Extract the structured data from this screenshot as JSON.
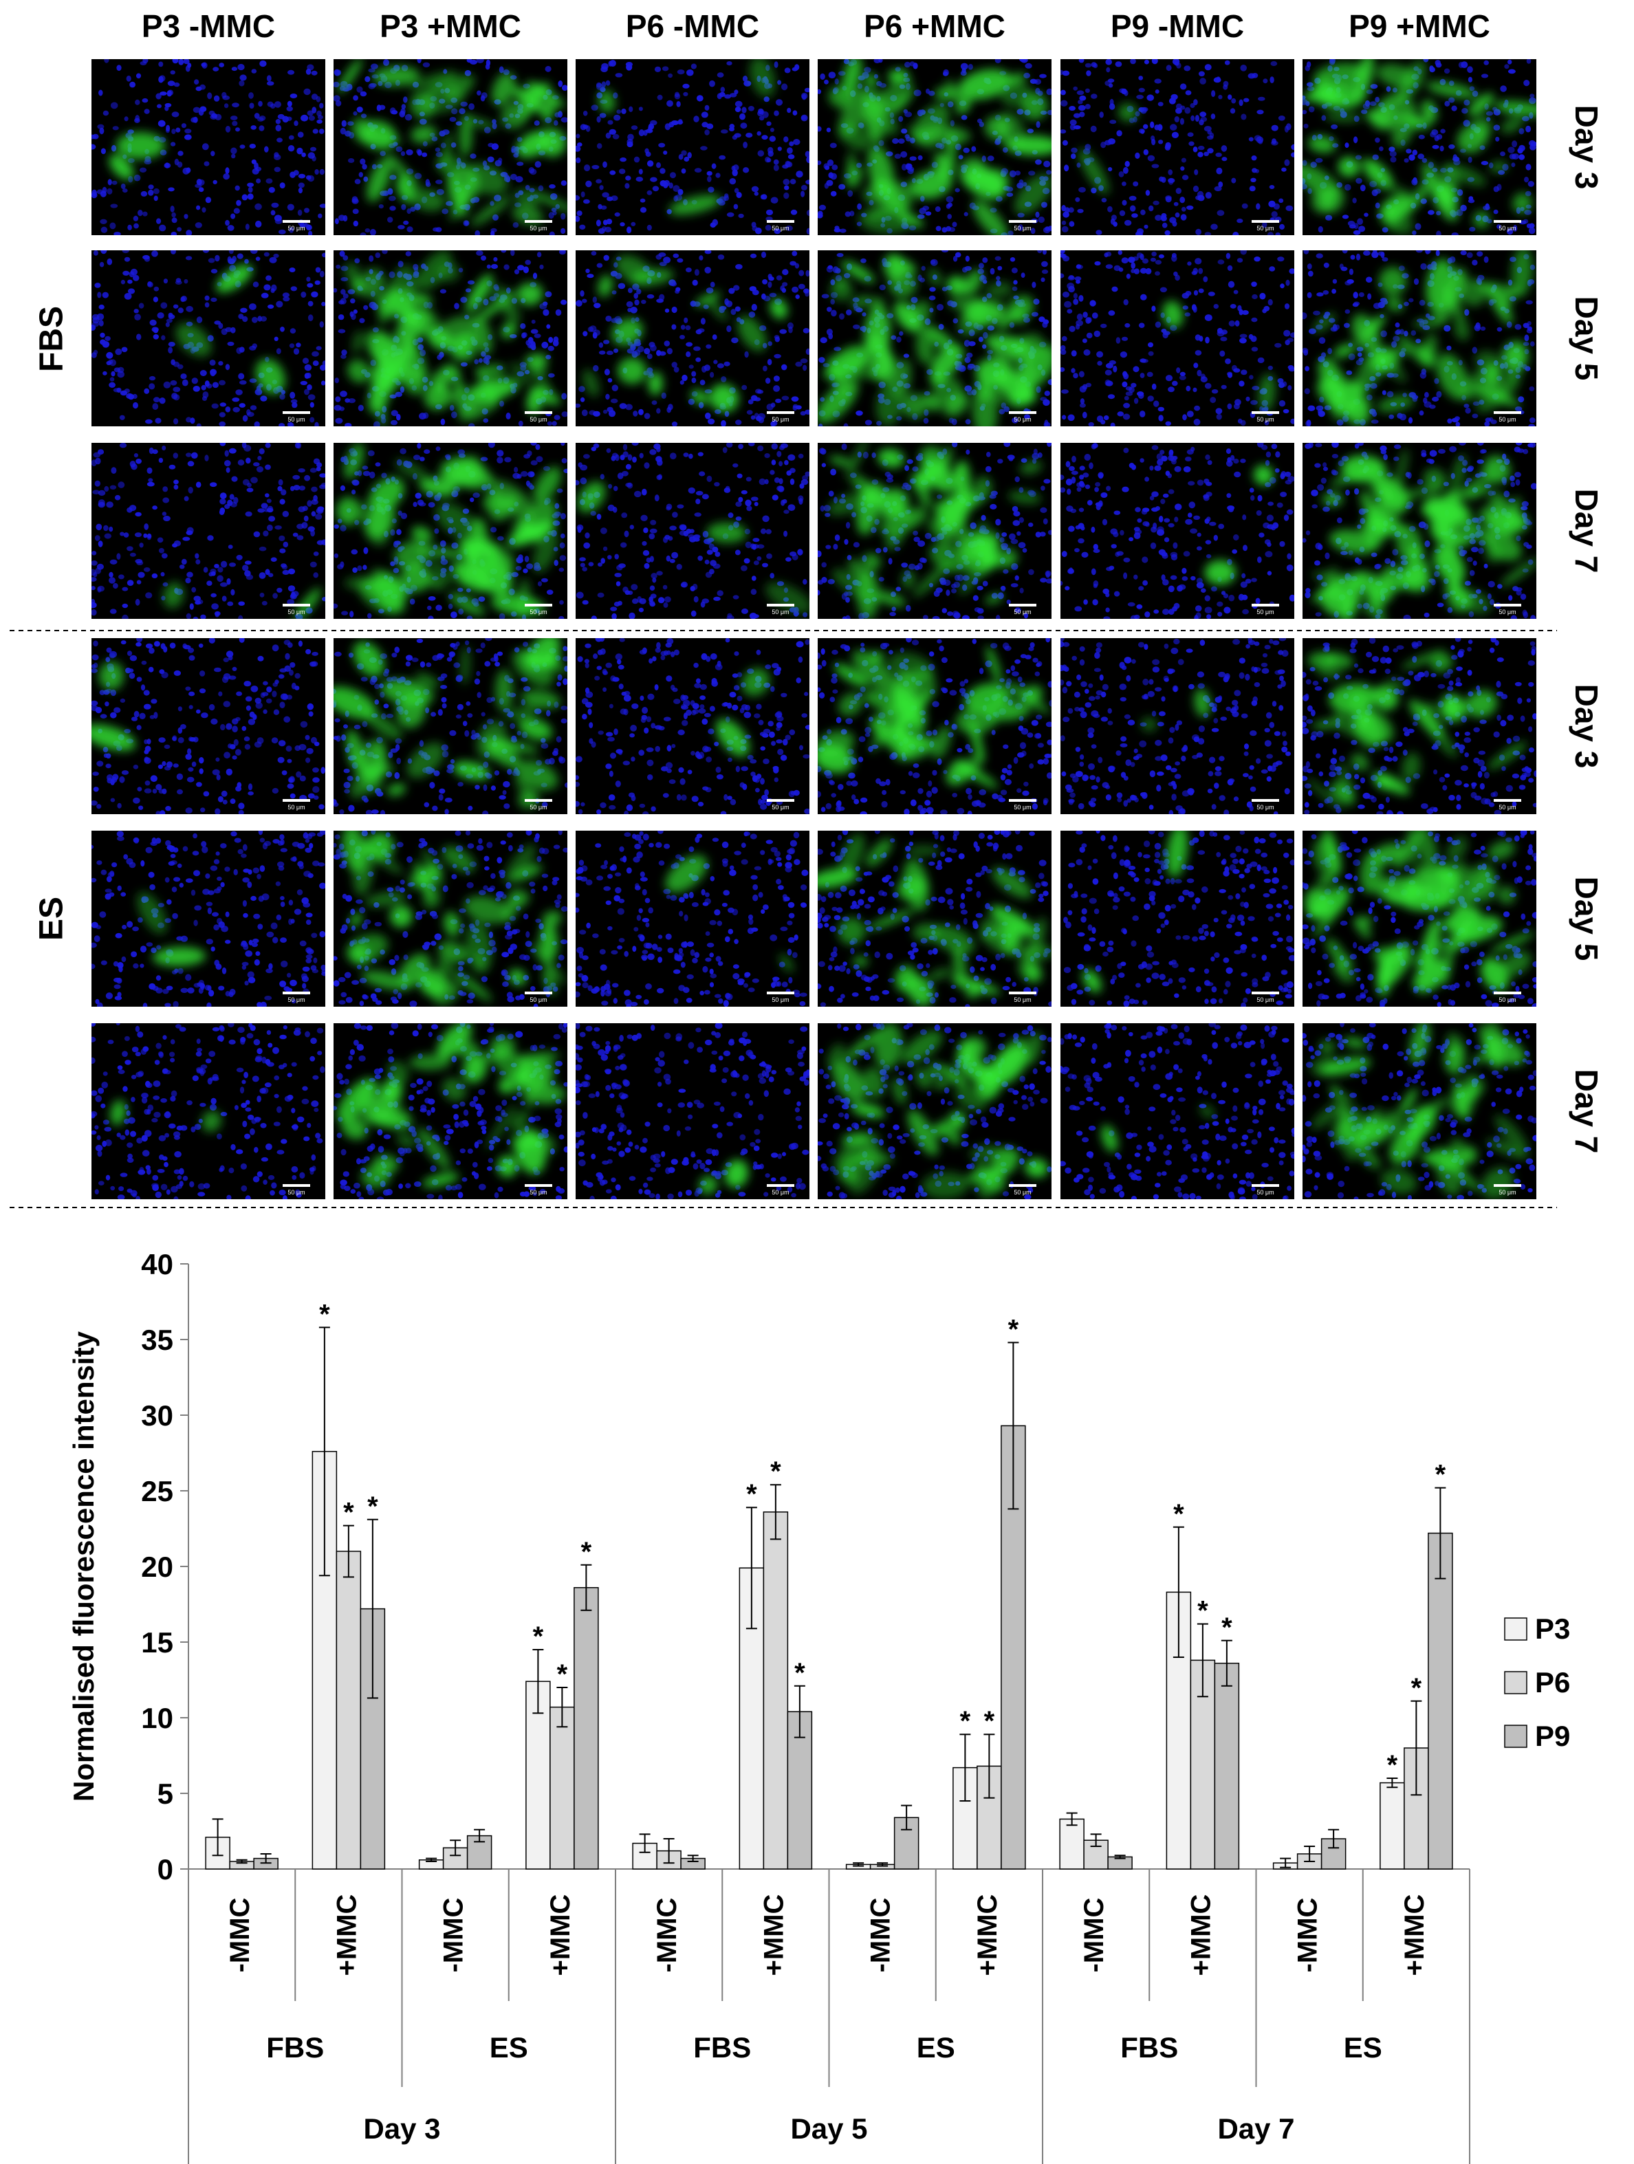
{
  "micrograph_panel": {
    "column_headers": [
      "P3 -MMC",
      "P3 +MMC",
      "P6 -MMC",
      "P6 +MMC",
      "P9 -MMC",
      "P9 +MMC"
    ],
    "row_groups": [
      {
        "label": "FBS",
        "rows": [
          "Day 3",
          "Day 5",
          "Day 7"
        ]
      },
      {
        "label": "ES",
        "rows": [
          "Day 3",
          "Day 5",
          "Day 7"
        ]
      }
    ],
    "scale_bar_label": "50 μm",
    "green_signal": [
      [
        0.04,
        0.62,
        0.05,
        0.68,
        0.03,
        0.72
      ],
      [
        0.05,
        0.9,
        0.22,
        0.85,
        0.04,
        0.7
      ],
      [
        0.04,
        0.75,
        0.05,
        0.8,
        0.04,
        0.88
      ],
      [
        0.03,
        0.55,
        0.03,
        0.55,
        0.03,
        0.45
      ],
      [
        0.04,
        0.6,
        0.03,
        0.45,
        0.03,
        0.78
      ],
      [
        0.04,
        0.62,
        0.04,
        0.6,
        0.03,
        0.7
      ]
    ],
    "colors": {
      "nuclei": "#1a1adc",
      "signal": "#33e633",
      "background": "#000000"
    }
  },
  "chart_data": {
    "type": "bar",
    "ylabel": "Normalised fluorescence intensity",
    "ylim": [
      0,
      40
    ],
    "yticks": [
      0,
      5,
      10,
      15,
      20,
      25,
      30,
      35,
      40
    ],
    "grid": false,
    "legend_position": "right",
    "days": [
      "Day 3",
      "Day 5",
      "Day 7"
    ],
    "media": [
      "FBS",
      "ES"
    ],
    "treatments": [
      "-MMC",
      "+MMC"
    ],
    "series": [
      {
        "name": "P3",
        "color": "#f2f2f2",
        "values": [
          2.1,
          27.6,
          0.6,
          12.4,
          1.7,
          19.9,
          0.3,
          6.7,
          3.3,
          18.3,
          0.4,
          5.7
        ],
        "errors": [
          1.2,
          8.2,
          0.1,
          2.1,
          0.6,
          4.0,
          0.1,
          2.2,
          0.4,
          4.3,
          0.3,
          0.3
        ],
        "significant": [
          false,
          true,
          false,
          true,
          false,
          true,
          false,
          true,
          false,
          true,
          false,
          true
        ]
      },
      {
        "name": "P6",
        "color": "#d9d9d9",
        "values": [
          0.5,
          21.0,
          1.4,
          10.7,
          1.2,
          23.6,
          0.3,
          6.8,
          1.9,
          13.8,
          1.0,
          8.0
        ],
        "errors": [
          0.1,
          1.7,
          0.5,
          1.3,
          0.8,
          1.8,
          0.1,
          2.1,
          0.4,
          2.4,
          0.5,
          3.1
        ],
        "significant": [
          false,
          true,
          false,
          true,
          false,
          true,
          false,
          true,
          false,
          true,
          false,
          true
        ]
      },
      {
        "name": "P9",
        "color": "#bfbfbf",
        "values": [
          0.7,
          17.2,
          2.2,
          18.6,
          0.7,
          10.4,
          3.4,
          29.3,
          0.8,
          13.6,
          2.0,
          22.2
        ],
        "errors": [
          0.3,
          5.9,
          0.4,
          1.5,
          0.2,
          1.7,
          0.8,
          5.5,
          0.1,
          1.5,
          0.6,
          3.0
        ],
        "significant": [
          false,
          true,
          false,
          true,
          false,
          true,
          false,
          true,
          false,
          true,
          false,
          true
        ]
      }
    ],
    "significance_marker": "*"
  }
}
